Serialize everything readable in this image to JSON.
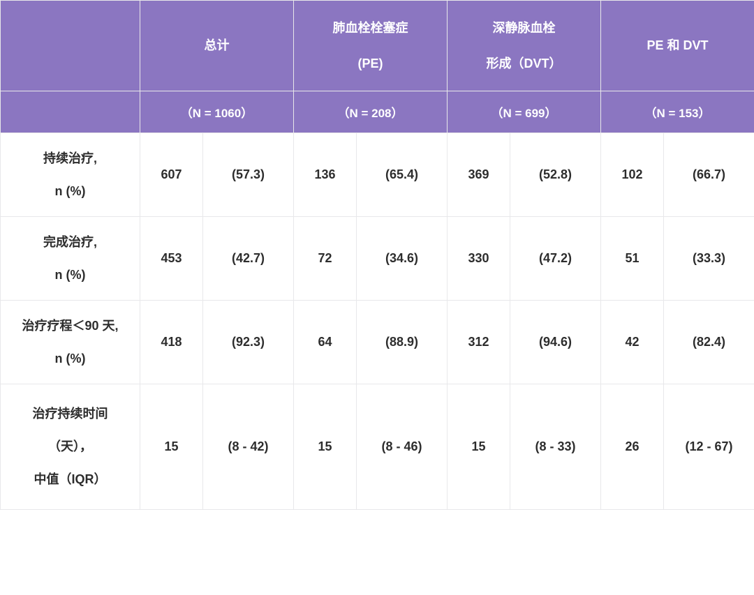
{
  "table": {
    "columns": [
      {
        "title_lines": [
          "总计"
        ],
        "n_label": "（N = 1060）"
      },
      {
        "title_lines": [
          "肺血栓栓塞症",
          "(PE)"
        ],
        "n_label": "（N = 208）"
      },
      {
        "title_lines": [
          "深静脉血栓",
          "形成（DVT）"
        ],
        "n_label": "（N = 699）"
      },
      {
        "title_lines": [
          "PE 和 DVT"
        ],
        "n_label": "（N = 153）"
      }
    ],
    "rows": [
      {
        "label_lines": [
          "持续治疗,",
          "n (%)"
        ],
        "cells": [
          {
            "n": "607",
            "p": "(57.3)"
          },
          {
            "n": "136",
            "p": "(65.4)"
          },
          {
            "n": "369",
            "p": "(52.8)"
          },
          {
            "n": "102",
            "p": "(66.7)"
          }
        ]
      },
      {
        "label_lines": [
          "完成治疗,",
          "n (%)"
        ],
        "cells": [
          {
            "n": "453",
            "p": "(42.7)"
          },
          {
            "n": "72",
            "p": "(34.6)"
          },
          {
            "n": "330",
            "p": "(47.2)"
          },
          {
            "n": "51",
            "p": "(33.3)"
          }
        ]
      },
      {
        "label_lines": [
          "治疗疗程＜90 天,",
          "n (%)"
        ],
        "cells": [
          {
            "n": "418",
            "p": "(92.3)"
          },
          {
            "n": "64",
            "p": "(88.9)"
          },
          {
            "n": "312",
            "p": "(94.6)"
          },
          {
            "n": "42",
            "p": "(82.4)"
          }
        ]
      },
      {
        "label_lines": [
          "治疗持续时间",
          "（天），",
          "中值（IQR）"
        ],
        "cells": [
          {
            "n": "15",
            "p": "(8 - 42)"
          },
          {
            "n": "15",
            "p": "(8 - 46)"
          },
          {
            "n": "15",
            "p": "(8 - 33)"
          },
          {
            "n": "26",
            "p": "(12 - 67)"
          }
        ]
      }
    ],
    "style": {
      "header_bg": "#8b76c1",
      "header_fg": "#ffffff",
      "body_fg": "#2d2d2d",
      "border_color": "#e8e8ea",
      "font_size_header": 18,
      "font_size_body": 18,
      "font_weight": 700
    }
  }
}
